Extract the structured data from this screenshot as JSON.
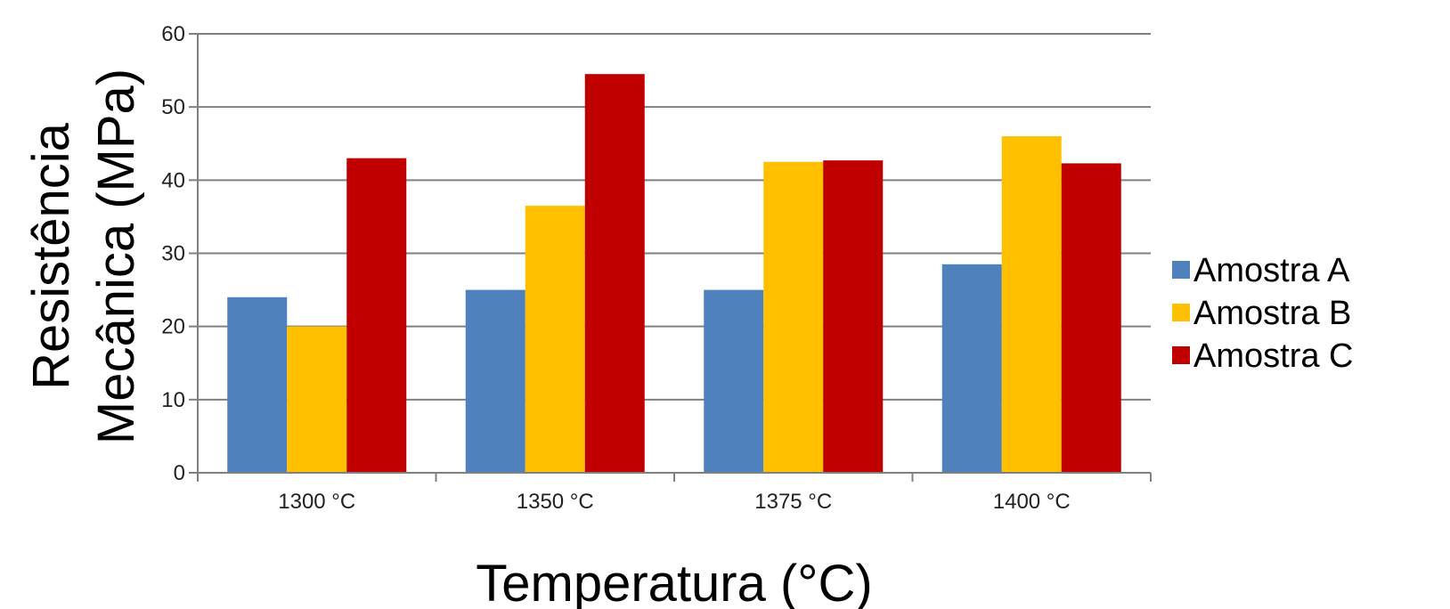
{
  "chart_data": {
    "type": "bar",
    "title": "",
    "xlabel": "Temperatura (°C)",
    "ylabel_lines": [
      "Resistência",
      "Mecânica (MPa)"
    ],
    "categories": [
      "1300 °C",
      "1350 °C",
      "1375 °C",
      "1400 °C"
    ],
    "series": [
      {
        "name": "Amostra A",
        "color": "#4f81bd",
        "values": [
          24,
          25,
          25,
          28.5
        ]
      },
      {
        "name": "Amostra B",
        "color": "#ffc000",
        "values": [
          20,
          36.5,
          42.5,
          46
        ]
      },
      {
        "name": "Amostra C",
        "color": "#c00000",
        "values": [
          43,
          54.5,
          42.7,
          42.3
        ]
      }
    ],
    "ylim": [
      0,
      60
    ],
    "yticks": [
      0,
      10,
      20,
      30,
      40,
      50,
      60
    ],
    "grid": true,
    "legend_position": "right"
  }
}
